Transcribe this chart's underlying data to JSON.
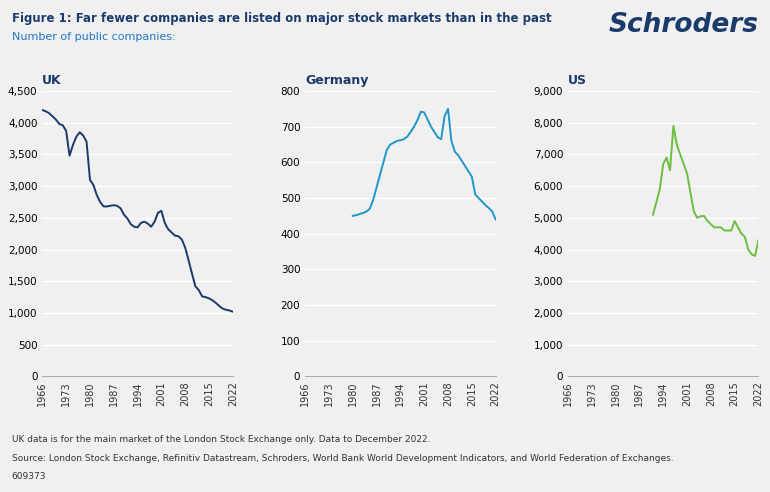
{
  "title": "Figure 1: Far fewer companies are listed on major stock markets than in the past",
  "subtitle": "Number of public companies:",
  "title_color": "#1a3a6b",
  "subtitle_color": "#2176c7",
  "schroders_text": "Schroders",
  "footnote1": "UK data is for the main market of the London Stock Exchange only. Data to December 2022.",
  "footnote2": "Source: London Stock Exchange, Refinitiv Datastream, Schroders, World Bank World Development Indicators, and World Federation of Exchanges.",
  "footnote3": "609373",
  "uk_label": "UK",
  "germany_label": "Germany",
  "us_label": "US",
  "line_color_uk": "#1a3a6b",
  "line_color_germany": "#2196c8",
  "line_color_us": "#6abf3f",
  "uk_years": [
    1966,
    1967,
    1968,
    1969,
    1970,
    1971,
    1972,
    1973,
    1974,
    1975,
    1976,
    1977,
    1978,
    1979,
    1980,
    1981,
    1982,
    1983,
    1984,
    1985,
    1986,
    1987,
    1988,
    1989,
    1990,
    1991,
    1992,
    1993,
    1994,
    1995,
    1996,
    1997,
    1998,
    1999,
    2000,
    2001,
    2002,
    2003,
    2004,
    2005,
    2006,
    2007,
    2008,
    2009,
    2010,
    2011,
    2012,
    2013,
    2014,
    2015,
    2016,
    2017,
    2018,
    2019,
    2020,
    2021,
    2022
  ],
  "uk_values": [
    4200,
    4180,
    4150,
    4100,
    4050,
    3980,
    3960,
    3870,
    3480,
    3650,
    3780,
    3850,
    3800,
    3700,
    3100,
    3020,
    2860,
    2750,
    2680,
    2680,
    2690,
    2700,
    2690,
    2650,
    2550,
    2490,
    2400,
    2360,
    2350,
    2420,
    2440,
    2410,
    2360,
    2440,
    2580,
    2610,
    2420,
    2320,
    2270,
    2220,
    2210,
    2160,
    2030,
    1830,
    1620,
    1420,
    1360,
    1260,
    1250,
    1230,
    1200,
    1160,
    1110,
    1070,
    1050,
    1040,
    1020
  ],
  "germany_years": [
    1980,
    1981,
    1982,
    1983,
    1984,
    1985,
    1986,
    1987,
    1988,
    1989,
    1990,
    1991,
    1992,
    1993,
    1994,
    1995,
    1996,
    1997,
    1998,
    1999,
    2000,
    2001,
    2002,
    2003,
    2004,
    2005,
    2006,
    2007,
    2008,
    2009,
    2010,
    2011,
    2012,
    2013,
    2014,
    2015,
    2016,
    2017,
    2018,
    2019,
    2020,
    2021,
    2022
  ],
  "germany_values": [
    450,
    452,
    455,
    458,
    462,
    470,
    495,
    530,
    565,
    600,
    635,
    650,
    655,
    660,
    662,
    665,
    672,
    685,
    700,
    718,
    742,
    740,
    720,
    700,
    685,
    670,
    665,
    730,
    750,
    660,
    630,
    620,
    605,
    590,
    575,
    560,
    510,
    500,
    490,
    480,
    472,
    462,
    440
  ],
  "us_years": [
    1991,
    1992,
    1993,
    1994,
    1995,
    1996,
    1997,
    1998,
    1999,
    2000,
    2001,
    2002,
    2003,
    2004,
    2005,
    2006,
    2007,
    2008,
    2009,
    2010,
    2011,
    2012,
    2013,
    2014,
    2015,
    2016,
    2017,
    2018,
    2019,
    2020,
    2021,
    2022
  ],
  "us_values": [
    5100,
    5500,
    5900,
    6700,
    6900,
    6500,
    7900,
    7300,
    7000,
    6700,
    6400,
    5800,
    5200,
    5000,
    5050,
    5060,
    4900,
    4800,
    4700,
    4700,
    4700,
    4600,
    4600,
    4600,
    4900,
    4700,
    4500,
    4400,
    4000,
    3850,
    3800,
    4300
  ],
  "uk_yticks": [
    0,
    500,
    1000,
    1500,
    2000,
    2500,
    3000,
    3500,
    4000,
    4500
  ],
  "germany_yticks": [
    0,
    100,
    200,
    300,
    400,
    500,
    600,
    700,
    800
  ],
  "us_yticks": [
    0,
    1000,
    2000,
    3000,
    4000,
    5000,
    6000,
    7000,
    8000,
    9000
  ],
  "xtick_years": [
    1966,
    1973,
    1980,
    1987,
    1994,
    2001,
    2008,
    2015,
    2022
  ],
  "bg_color": "#f0f0f0",
  "plot_bg_color": "#f0f0f0",
  "grid_color": "#ffffff"
}
